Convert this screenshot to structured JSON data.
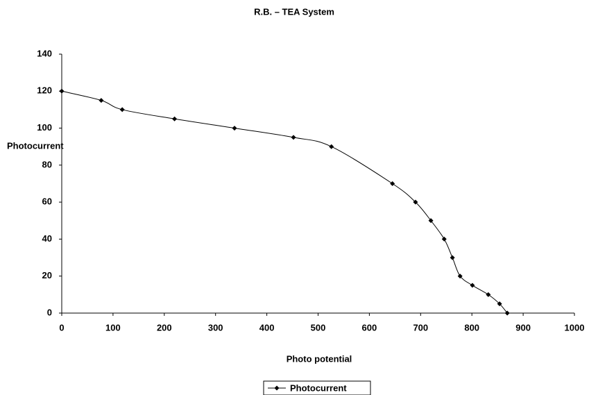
{
  "chart_data": {
    "type": "line",
    "title": "R.B. – TEA System",
    "x_label": "Photo potential",
    "y_label": "Photocurrent",
    "x": [
      0,
      77,
      118,
      220,
      337,
      452,
      526,
      645,
      690,
      720,
      746,
      762,
      777,
      801,
      832,
      854,
      869
    ],
    "series": [
      {
        "name": "Photocurrent",
        "color": "#000000",
        "values": [
          120,
          115,
          110,
          105,
          100,
          95,
          90,
          70,
          60,
          50,
          40,
          30,
          20,
          15,
          10,
          5,
          0
        ]
      }
    ],
    "xlim": [
      0,
      1000
    ],
    "xticks": [
      0,
      100,
      200,
      300,
      400,
      500,
      600,
      700,
      800,
      900,
      1000
    ],
    "ylim": [
      0,
      140
    ],
    "yticks": [
      0,
      20,
      40,
      60,
      80,
      100,
      120,
      140
    ],
    "grid": false,
    "legend": "bottom"
  }
}
